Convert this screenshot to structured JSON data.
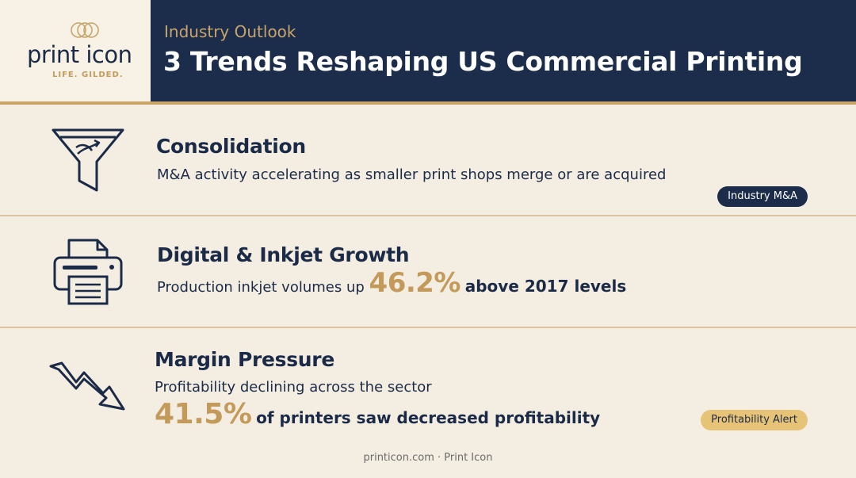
{
  "brand": {
    "name": "print icon",
    "tagline": "LIFE. GILDED.",
    "gold": "#c9a56a",
    "navy": "#1b2d4b"
  },
  "header": {
    "kicker": "Industry Outlook",
    "title": "3 Trends Reshaping US Commercial Printing"
  },
  "trends": [
    {
      "icon": "funnel-icon",
      "title": "Consolidation",
      "description": "M&A activity accelerating as smaller print shops merge or are acquired",
      "badge": "Industry M&A"
    },
    {
      "icon": "printer-icon",
      "title": "Digital & Inkjet Growth",
      "description_prefix": "Production inkjet volumes up",
      "stat": "46.2%",
      "description_suffix": "above 2017 levels"
    },
    {
      "icon": "trend-down-icon",
      "title": "Margin Pressure",
      "description": "Profitability declining across the sector",
      "stat": "41.5%",
      "stat_suffix": "of printers saw decreased profitability",
      "badge": "Profitability Alert"
    }
  ],
  "footer": {
    "text": "printicon.com · Print Icon"
  }
}
